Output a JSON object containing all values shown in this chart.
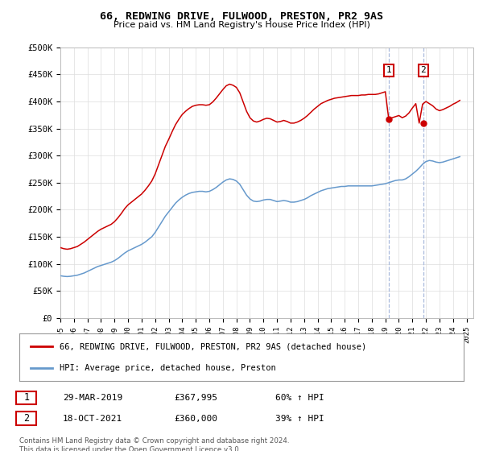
{
  "title": "66, REDWING DRIVE, FULWOOD, PRESTON, PR2 9AS",
  "subtitle": "Price paid vs. HM Land Registry's House Price Index (HPI)",
  "ylabel_ticks": [
    "£0",
    "£50K",
    "£100K",
    "£150K",
    "£200K",
    "£250K",
    "£300K",
    "£350K",
    "£400K",
    "£450K",
    "£500K"
  ],
  "ytick_values": [
    0,
    50000,
    100000,
    150000,
    200000,
    250000,
    300000,
    350000,
    400000,
    450000,
    500000
  ],
  "ylim": [
    0,
    500000
  ],
  "xlim_start": 1995.0,
  "xlim_end": 2025.5,
  "sale1_date": "29-MAR-2019",
  "sale1_price": 367995,
  "sale1_year": 2019.24,
  "sale1_label": "1",
  "sale2_date": "18-OCT-2021",
  "sale2_price": 360000,
  "sale2_year": 2021.8,
  "sale2_label": "2",
  "red_color": "#cc0000",
  "blue_color": "#6699cc",
  "vline_color": "#aabbdd",
  "background_color": "#ffffff",
  "grid_color": "#dddddd",
  "legend_line1": "66, REDWING DRIVE, FULWOOD, PRESTON, PR2 9AS (detached house)",
  "legend_line2": "HPI: Average price, detached house, Preston",
  "table_row1": [
    "1",
    "29-MAR-2019",
    "£367,995",
    "60% ↑ HPI"
  ],
  "table_row2": [
    "2",
    "18-OCT-2021",
    "£360,000",
    "39% ↑ HPI"
  ],
  "footer": "Contains HM Land Registry data © Crown copyright and database right 2024.\nThis data is licensed under the Open Government Licence v3.0.",
  "hpi_years": [
    1995.0,
    1995.25,
    1995.5,
    1995.75,
    1996.0,
    1996.25,
    1996.5,
    1996.75,
    1997.0,
    1997.25,
    1997.5,
    1997.75,
    1998.0,
    1998.25,
    1998.5,
    1998.75,
    1999.0,
    1999.25,
    1999.5,
    1999.75,
    2000.0,
    2000.25,
    2000.5,
    2000.75,
    2001.0,
    2001.25,
    2001.5,
    2001.75,
    2002.0,
    2002.25,
    2002.5,
    2002.75,
    2003.0,
    2003.25,
    2003.5,
    2003.75,
    2004.0,
    2004.25,
    2004.5,
    2004.75,
    2005.0,
    2005.25,
    2005.5,
    2005.75,
    2006.0,
    2006.25,
    2006.5,
    2006.75,
    2007.0,
    2007.25,
    2007.5,
    2007.75,
    2008.0,
    2008.25,
    2008.5,
    2008.75,
    2009.0,
    2009.25,
    2009.5,
    2009.75,
    2010.0,
    2010.25,
    2010.5,
    2010.75,
    2011.0,
    2011.25,
    2011.5,
    2011.75,
    2012.0,
    2012.25,
    2012.5,
    2012.75,
    2013.0,
    2013.25,
    2013.5,
    2013.75,
    2014.0,
    2014.25,
    2014.5,
    2014.75,
    2015.0,
    2015.25,
    2015.5,
    2015.75,
    2016.0,
    2016.25,
    2016.5,
    2016.75,
    2017.0,
    2017.25,
    2017.5,
    2017.75,
    2018.0,
    2018.25,
    2018.5,
    2018.75,
    2019.0,
    2019.25,
    2019.5,
    2019.75,
    2020.0,
    2020.25,
    2020.5,
    2020.75,
    2021.0,
    2021.25,
    2021.5,
    2021.75,
    2022.0,
    2022.25,
    2022.5,
    2022.75,
    2023.0,
    2023.25,
    2023.5,
    2023.75,
    2024.0,
    2024.25,
    2024.5
  ],
  "hpi_values": [
    78000,
    77000,
    76500,
    77000,
    78000,
    79000,
    81000,
    83000,
    86000,
    89000,
    92000,
    95000,
    97000,
    99000,
    101000,
    103000,
    106000,
    110000,
    115000,
    120000,
    124000,
    127000,
    130000,
    133000,
    136000,
    140000,
    145000,
    150000,
    158000,
    168000,
    178000,
    188000,
    196000,
    204000,
    212000,
    218000,
    223000,
    227000,
    230000,
    232000,
    233000,
    234000,
    234000,
    233000,
    234000,
    237000,
    241000,
    246000,
    251000,
    255000,
    257000,
    256000,
    253000,
    247000,
    237000,
    227000,
    220000,
    216000,
    215000,
    216000,
    218000,
    219000,
    219000,
    217000,
    215000,
    216000,
    217000,
    216000,
    214000,
    214000,
    215000,
    217000,
    219000,
    222000,
    226000,
    229000,
    232000,
    235000,
    237000,
    239000,
    240000,
    241000,
    242000,
    243000,
    243000,
    244000,
    244000,
    244000,
    244000,
    244000,
    244000,
    244000,
    244000,
    245000,
    246000,
    247000,
    248000,
    250000,
    252000,
    254000,
    255000,
    255000,
    257000,
    261000,
    266000,
    271000,
    277000,
    284000,
    289000,
    291000,
    290000,
    288000,
    287000,
    288000,
    290000,
    292000,
    294000,
    296000,
    298000
  ],
  "red_years": [
    1995.0,
    1995.25,
    1995.5,
    1995.75,
    1996.0,
    1996.25,
    1996.5,
    1996.75,
    1997.0,
    1997.25,
    1997.5,
    1997.75,
    1998.0,
    1998.25,
    1998.5,
    1998.75,
    1999.0,
    1999.25,
    1999.5,
    1999.75,
    2000.0,
    2000.25,
    2000.5,
    2000.75,
    2001.0,
    2001.25,
    2001.5,
    2001.75,
    2002.0,
    2002.25,
    2002.5,
    2002.75,
    2003.0,
    2003.25,
    2003.5,
    2003.75,
    2004.0,
    2004.25,
    2004.5,
    2004.75,
    2005.0,
    2005.25,
    2005.5,
    2005.75,
    2006.0,
    2006.25,
    2006.5,
    2006.75,
    2007.0,
    2007.25,
    2007.5,
    2007.75,
    2008.0,
    2008.25,
    2008.5,
    2008.75,
    2009.0,
    2009.25,
    2009.5,
    2009.75,
    2010.0,
    2010.25,
    2010.5,
    2010.75,
    2011.0,
    2011.25,
    2011.5,
    2011.75,
    2012.0,
    2012.25,
    2012.5,
    2012.75,
    2013.0,
    2013.25,
    2013.5,
    2013.75,
    2014.0,
    2014.25,
    2014.5,
    2014.75,
    2015.0,
    2015.25,
    2015.5,
    2015.75,
    2016.0,
    2016.25,
    2016.5,
    2016.75,
    2017.0,
    2017.25,
    2017.5,
    2017.75,
    2018.0,
    2018.25,
    2018.5,
    2018.75,
    2019.0,
    2019.25,
    2019.5,
    2019.75,
    2020.0,
    2020.25,
    2020.5,
    2020.75,
    2021.0,
    2021.25,
    2021.5,
    2021.75,
    2022.0,
    2022.25,
    2022.5,
    2022.75,
    2023.0,
    2023.25,
    2023.5,
    2023.75,
    2024.0,
    2024.25,
    2024.5
  ],
  "red_values": [
    130000,
    128000,
    127000,
    128000,
    130000,
    132000,
    136000,
    140000,
    145000,
    150000,
    155000,
    160000,
    164000,
    167000,
    170000,
    173000,
    178000,
    185000,
    193000,
    202000,
    209000,
    214000,
    219000,
    224000,
    229000,
    236000,
    244000,
    253000,
    266000,
    283000,
    300000,
    317000,
    330000,
    344000,
    357000,
    367000,
    376000,
    382000,
    387000,
    391000,
    393000,
    394000,
    394000,
    393000,
    394000,
    399000,
    406000,
    414000,
    422000,
    429000,
    432000,
    430000,
    426000,
    416000,
    399000,
    382000,
    370000,
    364000,
    362000,
    364000,
    367000,
    369000,
    368000,
    365000,
    362000,
    363000,
    365000,
    363000,
    360000,
    360000,
    362000,
    365000,
    369000,
    374000,
    380000,
    386000,
    391000,
    396000,
    399000,
    402000,
    404000,
    406000,
    407000,
    408000,
    409000,
    410000,
    411000,
    411000,
    411000,
    412000,
    412000,
    413000,
    413000,
    413000,
    414000,
    416000,
    418000,
    367995,
    370000,
    372000,
    374000,
    370000,
    373000,
    379000,
    388000,
    396000,
    360000,
    395000,
    400000,
    396000,
    392000,
    386000,
    383000,
    385000,
    388000,
    391000,
    395000,
    398000,
    402000
  ]
}
